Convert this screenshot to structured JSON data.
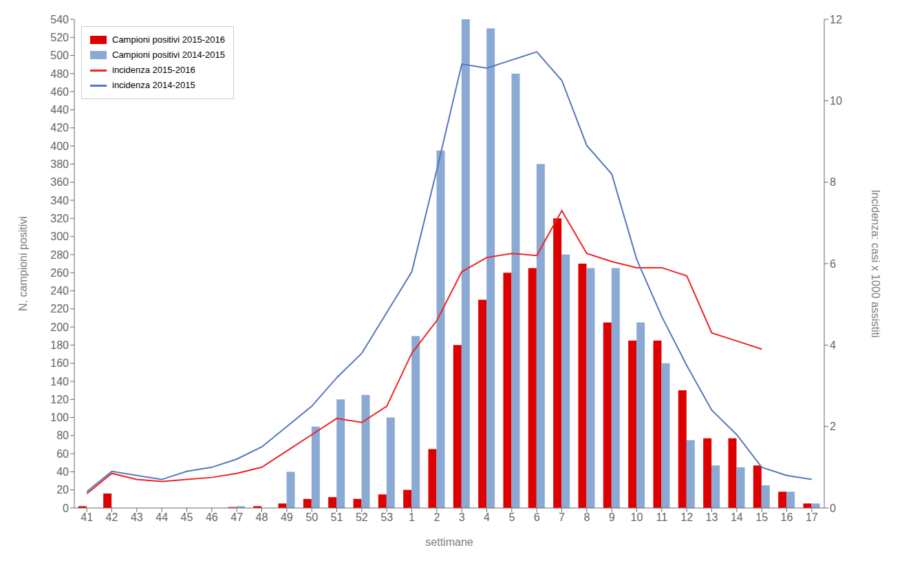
{
  "chart_data": {
    "type": "bar",
    "xlabel": "settimane",
    "ylabel": "N. campioni positivi",
    "y2label": "Incidenza: casi x 1000 assistiti",
    "categories": [
      "41",
      "42",
      "43",
      "44",
      "45",
      "46",
      "47",
      "48",
      "49",
      "50",
      "51",
      "52",
      "53",
      "1",
      "2",
      "3",
      "4",
      "5",
      "6",
      "7",
      "8",
      "9",
      "10",
      "11",
      "12",
      "13",
      "14",
      "15",
      "16",
      "17"
    ],
    "series": [
      {
        "name": "Campioni positivi 2015-2016",
        "type": "bar",
        "color": "#dd0000",
        "values": [
          2,
          16,
          0,
          0,
          0,
          0,
          1,
          2,
          5,
          10,
          12,
          10,
          15,
          20,
          65,
          180,
          230,
          260,
          265,
          320,
          270,
          205,
          185,
          185,
          130,
          77,
          77,
          47,
          18,
          5
        ]
      },
      {
        "name": "Campioni positivi 2014-2015",
        "type": "bar",
        "color": "#8aaad4",
        "values": [
          0,
          0,
          0,
          0,
          0,
          0,
          2,
          0,
          40,
          90,
          120,
          125,
          100,
          190,
          395,
          540,
          530,
          480,
          380,
          280,
          265,
          265,
          205,
          160,
          75,
          47,
          45,
          25,
          18,
          5
        ]
      },
      {
        "name": "incidenza 2015-2016",
        "type": "line",
        "color": "#ee2222",
        "axis": "y2",
        "values": [
          0.35,
          0.85,
          0.7,
          0.65,
          0.7,
          0.75,
          0.85,
          1.0,
          1.4,
          1.8,
          2.2,
          2.1,
          2.5,
          3.8,
          4.6,
          5.8,
          6.15,
          6.25,
          6.2,
          7.3,
          6.25,
          6.05,
          5.9,
          5.9,
          5.7,
          4.3,
          4.1,
          3.9,
          null,
          null
        ]
      },
      {
        "name": "incidenza 2014-2015",
        "type": "line",
        "color": "#5577bb",
        "axis": "y2",
        "values": [
          0.4,
          0.9,
          0.8,
          0.7,
          0.9,
          1.0,
          1.2,
          1.5,
          2.0,
          2.5,
          3.2,
          3.8,
          4.8,
          5.8,
          8.3,
          10.9,
          10.8,
          11.0,
          11.2,
          10.5,
          8.9,
          8.2,
          6.1,
          4.7,
          3.5,
          2.4,
          1.8,
          1.0,
          0.8,
          0.7
        ]
      }
    ],
    "ylim": [
      0,
      540
    ],
    "yticks": [
      0,
      20,
      40,
      60,
      80,
      100,
      120,
      140,
      160,
      180,
      200,
      220,
      240,
      260,
      280,
      300,
      320,
      340,
      360,
      380,
      400,
      420,
      440,
      460,
      480,
      500,
      520,
      540
    ],
    "y2lim": [
      0,
      12
    ],
    "y2ticks": [
      0,
      2,
      4,
      6,
      8,
      10,
      12
    ],
    "grid": false,
    "legend": "upper left"
  }
}
